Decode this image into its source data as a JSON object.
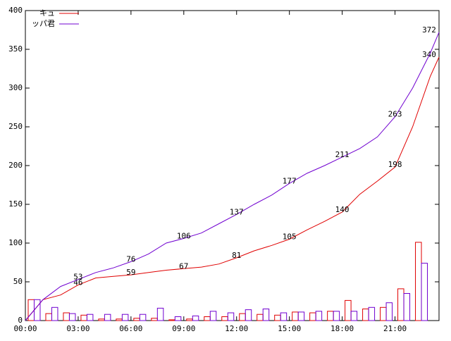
{
  "chart_data": {
    "type": "line",
    "x": [
      0,
      1,
      2,
      3,
      4,
      5,
      6,
      7,
      8,
      9,
      10,
      11,
      12,
      13,
      14,
      15,
      16,
      17,
      18,
      19,
      20,
      21,
      22,
      23,
      23.5
    ],
    "bar_x": [
      0,
      1,
      2,
      3,
      4,
      5,
      6,
      7,
      8,
      9,
      10,
      11,
      12,
      13,
      14,
      15,
      16,
      17,
      18,
      19,
      20,
      21,
      22
    ],
    "series": [
      {
        "name": "キュ",
        "color": "#e00000",
        "values": [
          0,
          27,
          33,
          46,
          55,
          57,
          59,
          62,
          65,
          67,
          69,
          73,
          81,
          90,
          97,
          105,
          117,
          128,
          140,
          163,
          180,
          198,
          250,
          315,
          340
        ],
        "value_labels": [
          null,
          null,
          null,
          "46",
          null,
          null,
          "59",
          null,
          null,
          "67",
          null,
          null,
          "81",
          null,
          null,
          "105",
          null,
          null,
          "140",
          null,
          null,
          "198",
          null,
          null,
          "340"
        ],
        "hourly": [
          27,
          9,
          10,
          7,
          2,
          2,
          3,
          3,
          1,
          2,
          5,
          5,
          9,
          8,
          7,
          11,
          10,
          12,
          26,
          15,
          17,
          41,
          101
        ]
      },
      {
        "name": "ッパ君",
        "color": "#7000d0",
        "values": [
          0,
          27,
          44,
          53,
          62,
          68,
          76,
          86,
          100,
          106,
          113,
          125,
          137,
          150,
          162,
          177,
          190,
          200,
          211,
          222,
          237,
          263,
          300,
          345,
          372
        ],
        "value_labels": [
          null,
          null,
          null,
          "53",
          null,
          null,
          "76",
          null,
          null,
          "106",
          null,
          null,
          "137",
          null,
          null,
          "177",
          null,
          null,
          "211",
          null,
          null,
          "263",
          null,
          null,
          "372"
        ],
        "hourly": [
          27,
          17,
          9,
          8,
          8,
          8,
          8,
          16,
          5,
          6,
          12,
          10,
          14,
          15,
          10,
          11,
          12,
          12,
          12,
          17,
          23,
          35,
          74
        ]
      }
    ],
    "xlim": [
      0,
      23.5
    ],
    "xticks": [
      {
        "value": 0,
        "label": "00:00"
      },
      {
        "value": 3,
        "label": "03:00"
      },
      {
        "value": 6,
        "label": "06:00"
      },
      {
        "value": 9,
        "label": "09:00"
      },
      {
        "value": 12,
        "label": "12:00"
      },
      {
        "value": 15,
        "label": "15:00"
      },
      {
        "value": 18,
        "label": "18:00"
      },
      {
        "value": 21,
        "label": "21:00"
      }
    ],
    "ylim": [
      0,
      400
    ],
    "yticks": [
      0,
      50,
      100,
      150,
      200,
      250,
      300,
      350,
      400
    ]
  }
}
